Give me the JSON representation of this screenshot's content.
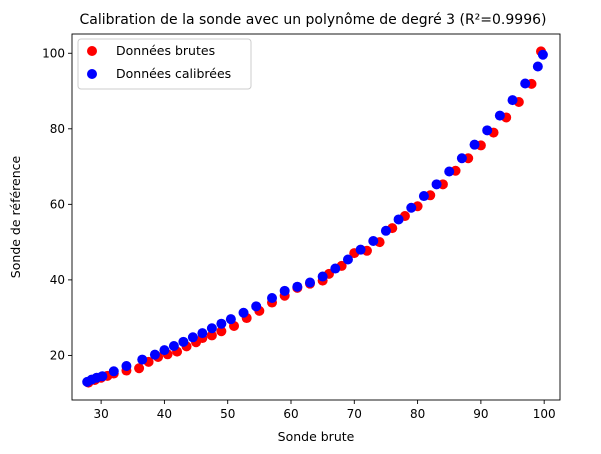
{
  "chart_data": {
    "type": "scatter",
    "title": "Calibration de la sonde avec un polynôme de degré 3 (R²=0.9996)",
    "xlabel": "Sonde brute",
    "ylabel": "Sonde de référence",
    "xlim": [
      25.4,
      102.5
    ],
    "ylim": [
      8.2,
      105.1
    ],
    "xticks": [
      30,
      40,
      50,
      60,
      70,
      80,
      90,
      100
    ],
    "yticks": [
      20,
      40,
      60,
      80,
      100
    ],
    "grid": false,
    "legend_position": "top-left",
    "series": [
      {
        "name": "Données brutes",
        "color": "#ff0000",
        "x": [
          28,
          29,
          30,
          31,
          32,
          34,
          36,
          37.5,
          39,
          40.5,
          42,
          43.5,
          45,
          46,
          47.5,
          49,
          51,
          53,
          55,
          57,
          59,
          61,
          63,
          65,
          66,
          68,
          70,
          72,
          74,
          76,
          78,
          80,
          82,
          84,
          86,
          88,
          90,
          92,
          94,
          96,
          98,
          99.5
        ],
        "y": [
          12.8,
          13.5,
          14.1,
          14.6,
          15.2,
          16.0,
          16.6,
          18.3,
          19.6,
          20.3,
          21.0,
          22.4,
          23.5,
          24.6,
          25.3,
          26.4,
          27.8,
          29.9,
          31.8,
          34.0,
          35.8,
          37.9,
          39.0,
          39.8,
          41.6,
          43.7,
          47.1,
          47.7,
          50.0,
          53.7,
          56.9,
          59.5,
          62.4,
          65.3,
          68.9,
          72.2,
          75.6,
          79.0,
          83.0,
          87.1,
          91.9,
          100.5
        ]
      },
      {
        "name": "Données calibrées",
        "color": "#0000ff",
        "x": [
          27.8,
          28.5,
          29.3,
          30.2,
          32,
          34,
          36.5,
          38.5,
          40,
          41.5,
          43,
          44.5,
          46,
          47.5,
          49,
          50.5,
          52.5,
          54.5,
          57,
          59,
          61,
          63,
          65,
          67,
          69,
          71,
          73,
          75,
          77,
          79,
          81,
          83,
          85,
          87,
          89,
          91,
          93,
          95,
          97,
          99,
          99.8
        ],
        "y": [
          13.0,
          13.6,
          14.1,
          14.5,
          15.8,
          17.2,
          18.9,
          20.2,
          21.4,
          22.5,
          23.6,
          24.8,
          25.9,
          27.2,
          28.4,
          29.6,
          31.3,
          33.0,
          35.2,
          37.1,
          38.2,
          39.3,
          40.9,
          43.0,
          45.4,
          48.0,
          50.3,
          53.0,
          56.0,
          59.1,
          62.2,
          65.3,
          68.7,
          72.2,
          75.8,
          79.6,
          83.5,
          87.6,
          92.0,
          96.5,
          99.6
        ]
      }
    ]
  }
}
